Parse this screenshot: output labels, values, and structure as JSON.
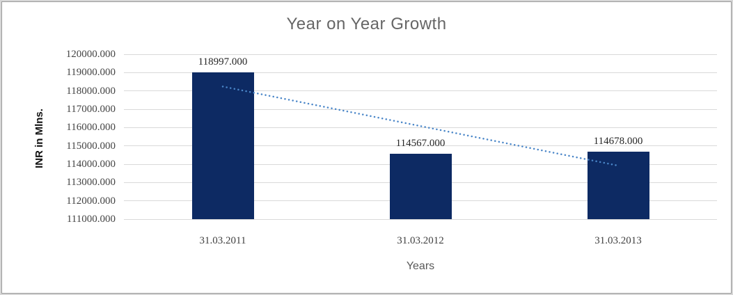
{
  "chart_data": {
    "type": "bar",
    "title": "Year on Year Growth",
    "xlabel": "Years",
    "ylabel": "INR in Mlns.",
    "categories": [
      "31.03.2011",
      "31.03.2012",
      "31.03.2013"
    ],
    "values": [
      118997.0,
      114567.0,
      114678.0
    ],
    "data_labels": [
      "118997.000",
      "114567.000",
      "114678.000"
    ],
    "ylim": [
      111000,
      120000
    ],
    "ytick_step": 1000,
    "ytick_labels": [
      "120000.000",
      "119000.000",
      "118000.000",
      "117000.000",
      "116000.000",
      "115000.000",
      "114000.000",
      "113000.000",
      "112000.000",
      "111000.000"
    ],
    "grid": true,
    "legend": false,
    "trendline": {
      "type": "linear",
      "style": "dotted"
    }
  },
  "colors": {
    "bar_fill": "#0d2a63",
    "trendline": "#4a86c8",
    "gridline": "#d9d9d9",
    "title_text": "#666666",
    "tick_text": "#444444",
    "category_text": "#404040",
    "data_label_text": "#262626",
    "x_axis_title_text": "#595959",
    "y_axis_title_text": "#111111",
    "frame_band": "#d6d6d6",
    "frame_line": "#9a9a9a",
    "background": "#ffffff"
  }
}
